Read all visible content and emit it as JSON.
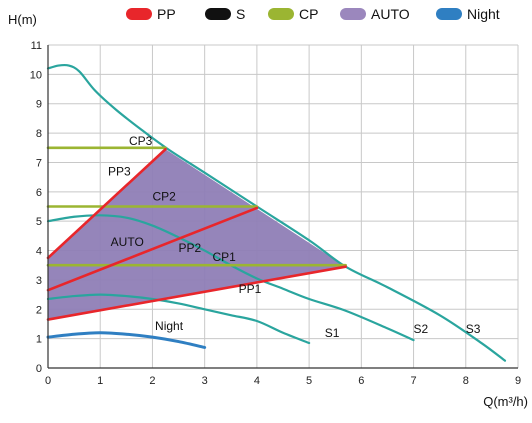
{
  "chart_data": {
    "type": "line",
    "title": "",
    "xlabel": "Q(m³/h)",
    "ylabel": "H(m)",
    "xlim": [
      0,
      9
    ],
    "ylim": [
      0,
      11
    ],
    "xticks": [
      "0",
      "1",
      "2",
      "3",
      "4",
      "5",
      "6",
      "7",
      "8",
      "9"
    ],
    "yticks": [
      "0",
      "1",
      "2",
      "3",
      "4",
      "5",
      "6",
      "7",
      "8",
      "9",
      "10",
      "11"
    ],
    "grid": true,
    "legend_position": "top",
    "legend": [
      {
        "label": "PP",
        "color": "#e8262b",
        "kind": "bar"
      },
      {
        "label": "S",
        "color": "#111111",
        "kind": "bar"
      },
      {
        "label": "CP",
        "color": "#9bb532",
        "kind": "bar"
      },
      {
        "label": "AUTO",
        "color": "#9b87bd",
        "kind": "bar"
      },
      {
        "label": "Night",
        "color": "#2f7fc2",
        "kind": "bar"
      }
    ],
    "auto_region": {
      "color": "#8f7eb6",
      "points": [
        [
          0,
          3.75
        ],
        [
          2.25,
          7.45
        ],
        [
          5.7,
          3.45
        ],
        [
          0,
          1.65
        ]
      ]
    },
    "series": [
      {
        "id": "S3",
        "group": "S",
        "color": "#2aa59e",
        "points": [
          [
            0,
            10.2
          ],
          [
            0.2,
            10.3
          ],
          [
            0.4,
            10.3
          ],
          [
            0.6,
            10.1
          ],
          [
            0.9,
            9.45
          ],
          [
            1.3,
            8.8
          ],
          [
            1.8,
            8.1
          ],
          [
            2.3,
            7.45
          ],
          [
            3,
            6.65
          ],
          [
            4,
            5.5
          ],
          [
            5,
            4.35
          ],
          [
            5.7,
            3.45
          ],
          [
            6.5,
            2.75
          ],
          [
            7.5,
            1.8
          ],
          [
            8.3,
            0.85
          ],
          [
            8.75,
            0.25
          ]
        ]
      },
      {
        "id": "S2",
        "group": "S",
        "color": "#2aa59e",
        "points": [
          [
            0,
            5.0
          ],
          [
            0.5,
            5.15
          ],
          [
            1,
            5.2
          ],
          [
            1.5,
            5.12
          ],
          [
            2,
            4.85
          ],
          [
            2.5,
            4.45
          ],
          [
            3,
            4.0
          ],
          [
            3.5,
            3.5
          ],
          [
            4,
            3.05
          ],
          [
            4.5,
            2.7
          ],
          [
            5,
            2.35
          ],
          [
            5.7,
            1.95
          ],
          [
            6.5,
            1.35
          ],
          [
            7,
            0.95
          ]
        ]
      },
      {
        "id": "S1",
        "group": "S",
        "color": "#2aa59e",
        "points": [
          [
            0,
            2.35
          ],
          [
            0.5,
            2.45
          ],
          [
            1,
            2.5
          ],
          [
            1.5,
            2.45
          ],
          [
            2,
            2.35
          ],
          [
            2.5,
            2.2
          ],
          [
            3,
            2.0
          ],
          [
            3.5,
            1.8
          ],
          [
            4,
            1.6
          ],
          [
            4.5,
            1.2
          ],
          [
            5,
            0.85
          ]
        ]
      },
      {
        "id": "Night",
        "group": "Night",
        "color": "#2f7fc2",
        "points": [
          [
            0,
            1.05
          ],
          [
            0.5,
            1.15
          ],
          [
            1,
            1.2
          ],
          [
            1.5,
            1.15
          ],
          [
            2,
            1.05
          ],
          [
            2.5,
            0.9
          ],
          [
            3,
            0.7
          ]
        ]
      },
      {
        "id": "CP3",
        "group": "CP",
        "color": "#9bb532",
        "points": [
          [
            0,
            7.5
          ],
          [
            2.25,
            7.5
          ]
        ]
      },
      {
        "id": "CP2",
        "group": "CP",
        "color": "#9bb532",
        "points": [
          [
            0,
            5.5
          ],
          [
            4.0,
            5.5
          ]
        ]
      },
      {
        "id": "CP1",
        "group": "CP",
        "color": "#9bb532",
        "points": [
          [
            0,
            3.5
          ],
          [
            5.7,
            3.5
          ]
        ]
      },
      {
        "id": "PP3",
        "group": "PP",
        "color": "#e8262b",
        "points": [
          [
            0,
            3.75
          ],
          [
            2.25,
            7.45
          ]
        ]
      },
      {
        "id": "PP2",
        "group": "PP",
        "color": "#e8262b",
        "points": [
          [
            0,
            2.65
          ],
          [
            4.0,
            5.45
          ]
        ]
      },
      {
        "id": "PP1",
        "group": "PP",
        "color": "#e8262b",
        "points": [
          [
            0,
            1.65
          ],
          [
            5.7,
            3.45
          ]
        ]
      }
    ],
    "annotations": [
      {
        "text": "CP3",
        "x": 1.55,
        "y": 7.6
      },
      {
        "text": "PP3",
        "x": 1.15,
        "y": 6.55
      },
      {
        "text": "CP2",
        "x": 2.0,
        "y": 5.7
      },
      {
        "text": "AUTO",
        "x": 1.2,
        "y": 4.15
      },
      {
        "text": "PP2",
        "x": 2.5,
        "y": 3.95
      },
      {
        "text": "CP1",
        "x": 3.15,
        "y": 3.65
      },
      {
        "text": "PP1",
        "x": 3.65,
        "y": 2.55
      },
      {
        "text": "Night",
        "x": 2.05,
        "y": 1.3
      },
      {
        "text": "S1",
        "x": 5.3,
        "y": 1.05
      },
      {
        "text": "S2",
        "x": 7.0,
        "y": 1.2
      },
      {
        "text": "S3",
        "x": 8.0,
        "y": 1.2
      }
    ]
  }
}
